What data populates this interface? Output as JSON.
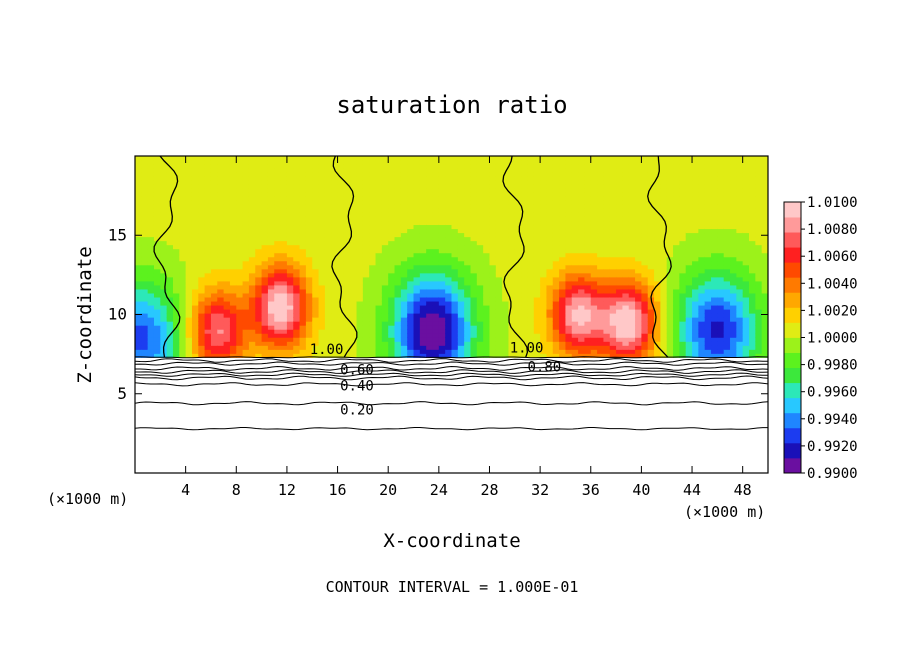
{
  "chart_data": {
    "type": "heatmap",
    "title": "saturation ratio",
    "xlabel": "X-coordinate",
    "ylabel": "Z-coordinate",
    "x_unit_left": "(×1000 m)",
    "x_unit_right": "(×1000 m)",
    "footer": "CONTOUR INTERVAL = 1.000E-01",
    "xlim": [
      0,
      50
    ],
    "ylim": [
      0,
      20
    ],
    "x_ticks": [
      4,
      8,
      12,
      16,
      20,
      24,
      28,
      32,
      36,
      40,
      44,
      48
    ],
    "y_ticks": [
      5,
      10,
      15
    ],
    "grid": false,
    "colorbar": {
      "min": 0.99,
      "max": 1.01,
      "levels": [
        "0.9900",
        "0.9920",
        "0.9940",
        "0.9960",
        "0.9980",
        "1.0000",
        "1.0020",
        "1.0040",
        "1.0060",
        "1.0080",
        "1.0100"
      ],
      "colors": [
        "#6a0fa0",
        "#1a10b8",
        "#1c3cf0",
        "#1f86ff",
        "#28c8ff",
        "#2ce8b8",
        "#3ce83c",
        "#5cf21e",
        "#9cf21a",
        "#e0ec14",
        "#ffd000",
        "#ffa800",
        "#ff7a00",
        "#ff4a00",
        "#ff2020",
        "#ff5a5a",
        "#ff9a9a",
        "#ffc8c8"
      ]
    },
    "surface_height": 7.3,
    "saturation_contours_above_surface": {
      "level": 1.0,
      "label": "1.00",
      "x_positions_approx": [
        2.5,
        16.5,
        30.0,
        41.5
      ]
    },
    "contour_labels": [
      "1.00",
      "1.00",
      "0.80",
      "0.60",
      "0.40",
      "0.20"
    ],
    "lower_contours": [
      {
        "level": 0.2,
        "label": "0.20",
        "z": 4.4
      },
      {
        "level": 0.4,
        "label": "0.40",
        "z": 5.6
      },
      {
        "level": 0.6,
        "label": "0.60",
        "z": 6.2
      },
      {
        "level": 0.8,
        "label": "0.80",
        "z": 6.9
      }
    ],
    "field_notes": {
      "supersaturated_peaks": [
        {
          "x": 6.5,
          "z": 9.0,
          "value": 1.008
        },
        {
          "x": 11.5,
          "z": 10.5,
          "value": 1.01
        },
        {
          "x": 35.0,
          "z": 10.0,
          "value": 1.009
        },
        {
          "x": 39.0,
          "z": 9.5,
          "value": 1.01
        }
      ],
      "subsaturated_troughs": [
        {
          "x": 23.5,
          "z": 9.0,
          "value": 0.99
        },
        {
          "x": 46.0,
          "z": 9.0,
          "value": 0.992
        },
        {
          "x": 0.5,
          "z": 8.5,
          "value": 0.993
        }
      ]
    }
  }
}
